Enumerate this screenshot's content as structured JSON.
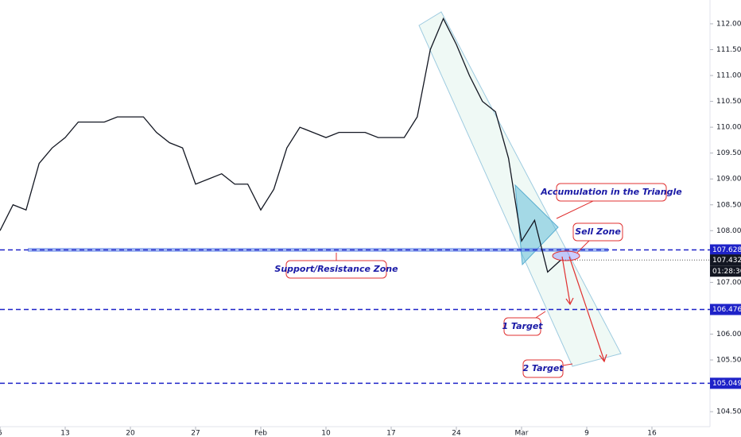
{
  "chart_data": {
    "type": "line",
    "categories": [
      "5",
      null,
      null,
      null,
      null,
      "13",
      null,
      null,
      null,
      null,
      "20",
      null,
      null,
      null,
      null,
      "27",
      null,
      null,
      null,
      null,
      "Feb",
      null,
      null,
      null,
      null,
      "10",
      null,
      null,
      null,
      null,
      "17",
      null,
      null,
      null,
      null,
      "24",
      null,
      null,
      null,
      null,
      "Mar",
      null,
      null,
      null,
      null,
      "9",
      null,
      null,
      null,
      null,
      "16"
    ],
    "series": [
      {
        "color": "#131722",
        "values": [
          108.0,
          108.5,
          108.4,
          109.3,
          109.6,
          109.8,
          110.1,
          110.1,
          110.1,
          110.2,
          110.2,
          110.2,
          109.9,
          109.7,
          109.6,
          108.9,
          109.0,
          109.1,
          108.9,
          108.9,
          108.4,
          108.8,
          109.6,
          110.0,
          109.9,
          109.8,
          109.9,
          109.9,
          109.9,
          109.8,
          109.8,
          109.8,
          110.2,
          111.5,
          112.1,
          111.6,
          111.0,
          110.5,
          110.3,
          109.4,
          107.8,
          108.2,
          107.2,
          107.43,
          null,
          null,
          null,
          null,
          null,
          null,
          null
        ]
      }
    ],
    "ylim": [
      104.21,
      112.46
    ],
    "yticks": [
      {
        "value": 104.5,
        "label": "104.500"
      },
      {
        "value": 105,
        "label": "105.000"
      },
      {
        "value": 105.5,
        "label": "105.500"
      },
      {
        "value": 106,
        "label": "106.000"
      },
      {
        "value": 106.5,
        "label": "106.500"
      },
      {
        "value": 107,
        "label": "107.000"
      },
      {
        "value": 107.5,
        "label": "107.500"
      },
      {
        "value": 108,
        "label": "108.000"
      },
      {
        "value": 108.5,
        "label": "108.500"
      },
      {
        "value": 109,
        "label": "109.000"
      },
      {
        "value": 109.5,
        "label": "109.500"
      },
      {
        "value": 110,
        "label": "110.000"
      },
      {
        "value": 110.5,
        "label": "110.500"
      },
      {
        "value": 111,
        "label": "111.000"
      },
      {
        "value": 111.5,
        "label": "111.500"
      },
      {
        "value": 112,
        "label": "112.000"
      }
    ],
    "levels": [
      107.628,
      106.476,
      105.049
    ],
    "level_color": "#1e22c8",
    "last_price": 107.432,
    "countdown": "01:28:30",
    "annotations": [
      "Support/Resistance Zone",
      "Accumulation in the Triangle",
      "Sell Zone",
      "1 Target",
      "2 Target"
    ]
  }
}
